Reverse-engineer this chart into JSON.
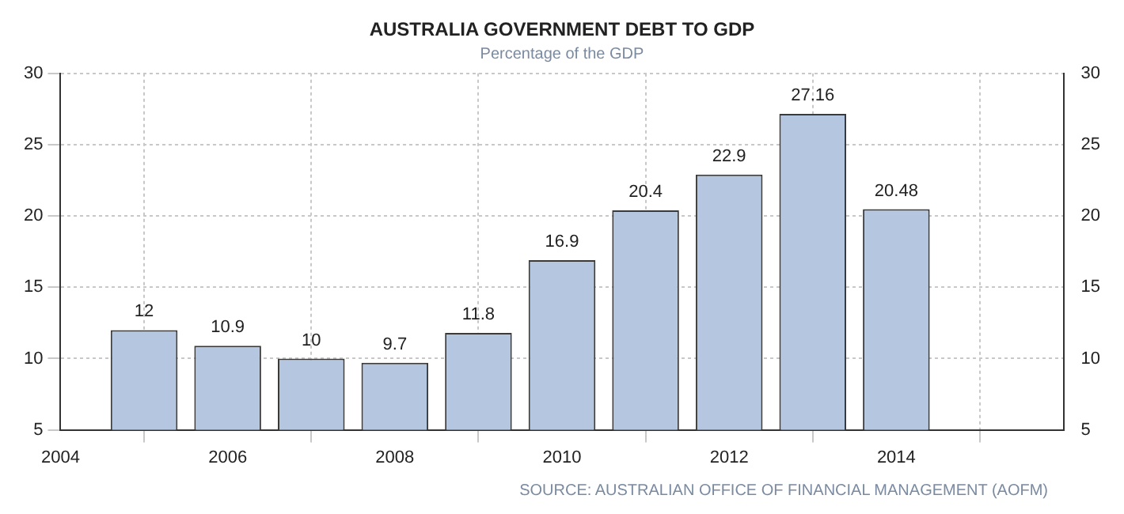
{
  "chart_data": {
    "type": "bar",
    "title": "AUSTRALIA GOVERNMENT DEBT TO GDP",
    "subtitle": "Percentage of the GDP",
    "x": [
      2005,
      2006,
      2007,
      2008,
      2009,
      2010,
      2011,
      2012,
      2013,
      2014
    ],
    "values": [
      12,
      10.9,
      10,
      9.7,
      11.8,
      16.9,
      20.4,
      22.9,
      27.16,
      20.48
    ],
    "color": "#b4c6e0",
    "xlim": [
      2004,
      2016
    ],
    "xticks": [
      2004,
      2006,
      2008,
      2010,
      2012,
      2014
    ],
    "ylim": [
      5,
      30
    ],
    "yticks": [
      5,
      10,
      15,
      20,
      25,
      30
    ],
    "y2lim": [
      5,
      30
    ],
    "y2ticks": [
      5,
      10,
      15,
      20,
      25,
      30
    ],
    "grid": true,
    "legend": false,
    "data_labels": true,
    "annotations": [
      "SOURCE: AUSTRALIAN OFFICE OF FINANCIAL MANAGEMENT (AOFM)"
    ]
  }
}
